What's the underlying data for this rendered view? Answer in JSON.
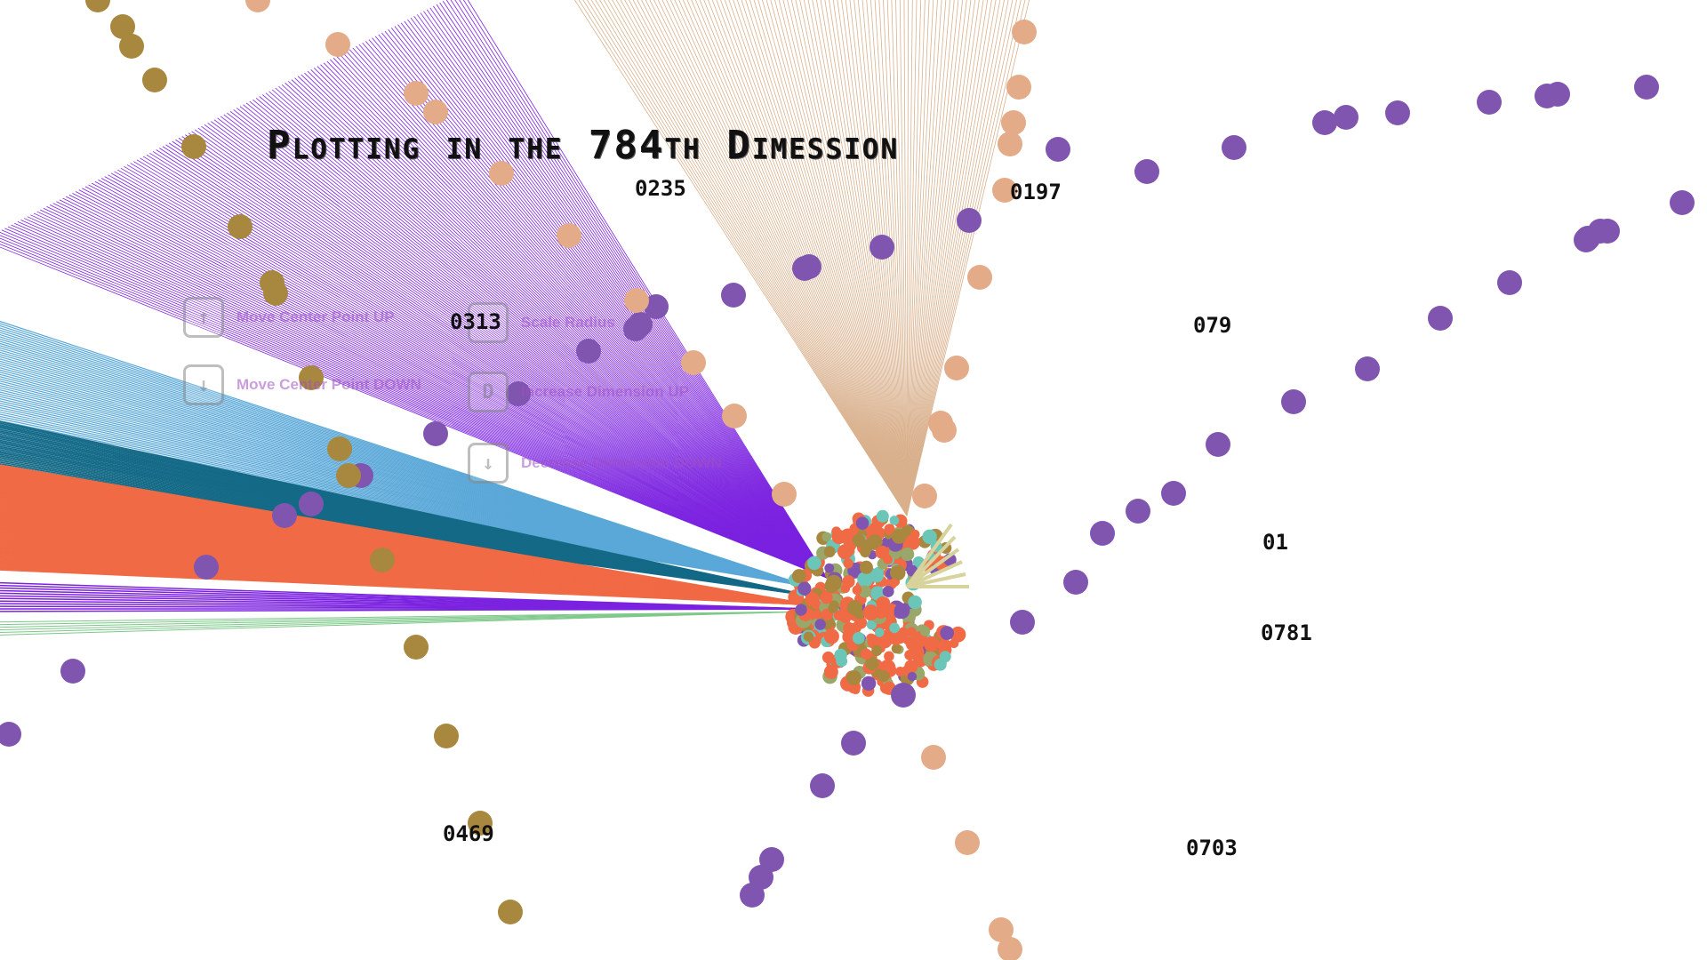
{
  "title": "Plotting in the 784th Dimession",
  "axis_labels": [
    {
      "text": "0235"
    },
    {
      "text": "0197"
    },
    {
      "text": "079"
    },
    {
      "text": "0313"
    },
    {
      "text": "01"
    },
    {
      "text": "0781"
    },
    {
      "text": "0703"
    },
    {
      "text": "0469"
    }
  ],
  "controls": [
    {
      "key": "↑",
      "label": "Move Center Point UP"
    },
    {
      "key": "↓",
      "label": "Move Center Point DOWN"
    },
    {
      "key": "",
      "label": "Scale Radius"
    },
    {
      "key": "D",
      "label": "Increase Dimension UP"
    },
    {
      "key": "↓",
      "label": "Decrease Dimension DOWN"
    }
  ],
  "colors": {
    "background": "#ffffff",
    "purple_lines": "#7b22e0",
    "tan_lines": "#d9b08c",
    "light_blue": "#5aa8d8",
    "teal": "#146a86",
    "orange": "#f06a45",
    "purple_dots": "#7f55b0",
    "tan_dots": "#e3ab88",
    "olive_dots": "#a8873e"
  }
}
